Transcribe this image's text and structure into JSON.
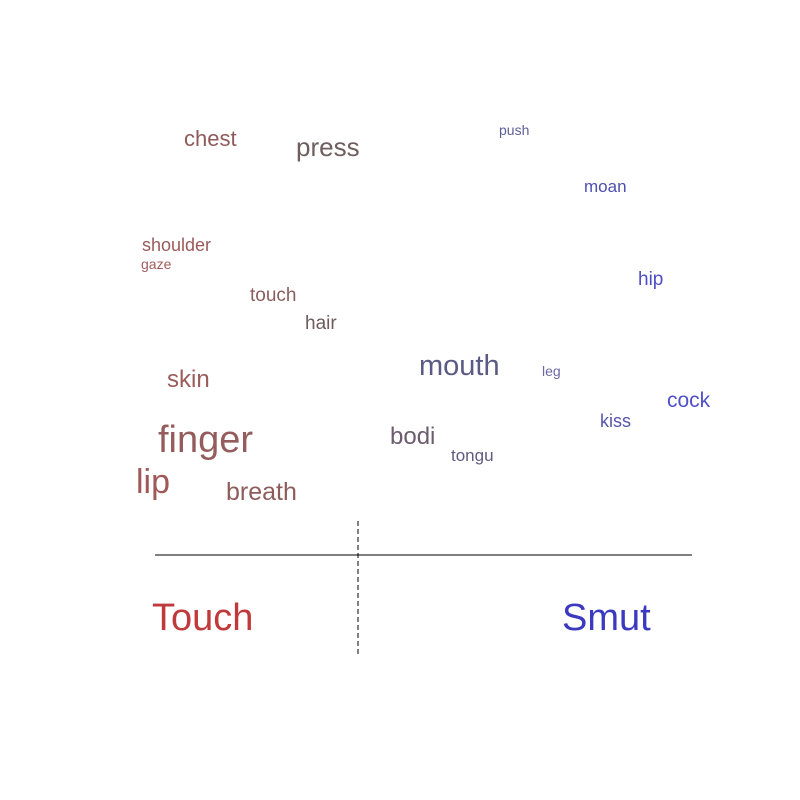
{
  "chart_data": {
    "type": "scatter",
    "description_kind": "word-scatter",
    "poles": {
      "left": {
        "label": "Touch",
        "color": "#c0393b"
      },
      "right": {
        "label": "Smut",
        "color": "#3a39c0"
      }
    },
    "words": [
      {
        "text": "chest",
        "size": 22,
        "color": "#8f5a5a"
      },
      {
        "text": "press",
        "size": 26,
        "color": "#6e5e5e"
      },
      {
        "text": "push",
        "size": 14,
        "color": "#5d5f99"
      },
      {
        "text": "moan",
        "size": 17,
        "color": "#4d4fb0"
      },
      {
        "text": "shoulder",
        "size": 18,
        "color": "#9b5a5a"
      },
      {
        "text": "gaze",
        "size": 14,
        "color": "#a35c5c"
      },
      {
        "text": "hip",
        "size": 19,
        "color": "#4e4fc4"
      },
      {
        "text": "touch",
        "size": 19,
        "color": "#8a5e5e"
      },
      {
        "text": "hair",
        "size": 19,
        "color": "#6e5c5c"
      },
      {
        "text": "skin",
        "size": 24,
        "color": "#9b5c5c"
      },
      {
        "text": "mouth",
        "size": 29,
        "color": "#5a5a85"
      },
      {
        "text": "leg",
        "size": 14,
        "color": "#6a68a0"
      },
      {
        "text": "cock",
        "size": 21,
        "color": "#5050c8"
      },
      {
        "text": "kiss",
        "size": 18,
        "color": "#5555aa"
      },
      {
        "text": "finger",
        "size": 38,
        "color": "#945c5c"
      },
      {
        "text": "bodi",
        "size": 24,
        "color": "#6b5c6e"
      },
      {
        "text": "tongu",
        "size": 17,
        "color": "#605a80"
      },
      {
        "text": "lip",
        "size": 34,
        "color": "#a05858"
      },
      {
        "text": "breath",
        "size": 25,
        "color": "#8f5c5c"
      }
    ]
  }
}
